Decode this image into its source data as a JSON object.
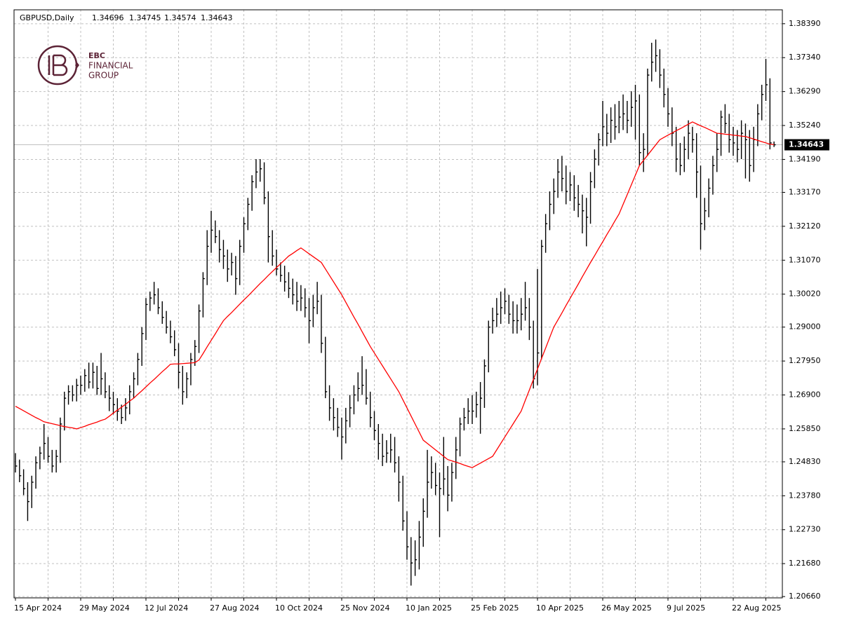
{
  "chart_data": {
    "type": "ohlc",
    "title": "GBPUSD,Daily",
    "quote": [
      "1.34696",
      "1.34745",
      "1.34574",
      "1.34643"
    ],
    "logo": {
      "mark": "EBC",
      "line1": "FINANCIAL",
      "line2": "GROUP"
    },
    "bar_color": "#000000",
    "grid": true,
    "categories": [
      "15 Apr 2024",
      null,
      null,
      null,
      null,
      null,
      null,
      null,
      null,
      null,
      null,
      null,
      null,
      null,
      null,
      null,
      "29 May 2024",
      null,
      null,
      null,
      null,
      null,
      null,
      null,
      null,
      null,
      null,
      null,
      null,
      null,
      null,
      null,
      "12 Jul 2024",
      null,
      null,
      null,
      null,
      null,
      null,
      null,
      null,
      null,
      null,
      null,
      null,
      null,
      null,
      null,
      "27 Aug 2024",
      null,
      null,
      null,
      null,
      null,
      null,
      null,
      null,
      null,
      null,
      null,
      null,
      null,
      null,
      null,
      "10 Oct 2024",
      null,
      null,
      null,
      null,
      null,
      null,
      null,
      null,
      null,
      null,
      null,
      null,
      null,
      null,
      null,
      "25 Nov 2024",
      null,
      null,
      null,
      null,
      null,
      null,
      null,
      null,
      null,
      null,
      null,
      null,
      null,
      null,
      null,
      "10 Jan 2025",
      null,
      null,
      null,
      null,
      null,
      null,
      null,
      null,
      null,
      null,
      null,
      null,
      null,
      null,
      null,
      "25 Feb 2025",
      null,
      null,
      null,
      null,
      null,
      null,
      null,
      null,
      null,
      null,
      null,
      null,
      null,
      null,
      null,
      "10 Apr 2025",
      null,
      null,
      null,
      null,
      null,
      null,
      null,
      null,
      null,
      null,
      null,
      null,
      null,
      null,
      null,
      "26 May 2025",
      null,
      null,
      null,
      null,
      null,
      null,
      null,
      null,
      null,
      null,
      null,
      null,
      null,
      null,
      null,
      "9 Jul 2025",
      null,
      null,
      null,
      null,
      null,
      null,
      null,
      null,
      null,
      null,
      null,
      null,
      null,
      null,
      null,
      "22 Aug 2025",
      null,
      null,
      null,
      null,
      null,
      null,
      null,
      null,
      null,
      null
    ],
    "high": [
      1.251,
      1.249,
      1.246,
      1.242,
      1.244,
      1.25,
      1.253,
      1.26,
      1.256,
      1.252,
      1.252,
      1.262,
      1.27,
      1.272,
      1.272,
      1.274,
      1.275,
      1.277,
      1.279,
      1.279,
      1.278,
      1.282,
      1.276,
      1.272,
      1.27,
      1.268,
      1.266,
      1.268,
      1.272,
      1.276,
      1.282,
      1.29,
      1.299,
      1.301,
      1.304,
      1.302,
      1.298,
      1.295,
      1.292,
      1.289,
      1.285,
      1.278,
      1.276,
      1.282,
      1.286,
      1.297,
      1.307,
      1.32,
      1.326,
      1.323,
      1.32,
      1.317,
      1.314,
      1.313,
      1.312,
      1.317,
      1.324,
      1.33,
      1.337,
      1.342,
      1.342,
      1.341,
      1.332,
      1.32,
      1.314,
      1.31,
      1.309,
      1.307,
      1.305,
      1.304,
      1.303,
      1.302,
      1.299,
      1.3,
      1.304,
      1.3,
      1.287,
      1.272,
      1.268,
      1.265,
      1.262,
      1.265,
      1.269,
      1.272,
      1.276,
      1.281,
      1.277,
      1.27,
      1.264,
      1.26,
      1.257,
      1.255,
      1.257,
      1.256,
      1.25,
      1.244,
      1.233,
      1.225,
      1.224,
      1.23,
      1.237,
      1.252,
      1.25,
      1.248,
      1.245,
      1.256,
      1.247,
      1.248,
      1.256,
      1.262,
      1.265,
      1.268,
      1.269,
      1.27,
      1.273,
      1.28,
      1.292,
      1.296,
      1.299,
      1.301,
      1.302,
      1.3,
      1.298,
      1.297,
      1.299,
      1.304,
      1.299,
      1.292,
      1.308,
      1.317,
      1.325,
      1.332,
      1.336,
      1.342,
      1.343,
      1.34,
      1.338,
      1.337,
      1.334,
      1.331,
      1.33,
      1.338,
      1.345,
      1.35,
      1.36,
      1.356,
      1.358,
      1.359,
      1.36,
      1.362,
      1.36,
      1.363,
      1.365,
      1.362,
      1.35,
      1.37,
      1.378,
      1.379,
      1.376,
      1.37,
      1.364,
      1.358,
      1.352,
      1.347,
      1.349,
      1.354,
      1.352,
      1.35,
      1.34,
      1.33,
      1.336,
      1.343,
      1.35,
      1.357,
      1.359,
      1.356,
      1.352,
      1.351,
      1.354,
      1.353,
      1.351,
      1.352,
      1.359,
      1.365,
      1.373,
      1.367,
      1.34745
    ],
    "low": [
      1.245,
      1.242,
      1.238,
      1.23,
      1.234,
      1.24,
      1.246,
      1.249,
      1.248,
      1.245,
      1.245,
      1.248,
      1.258,
      1.266,
      1.267,
      1.267,
      1.269,
      1.27,
      1.271,
      1.271,
      1.269,
      1.269,
      1.268,
      1.264,
      1.263,
      1.261,
      1.26,
      1.261,
      1.263,
      1.268,
      1.272,
      1.278,
      1.286,
      1.295,
      1.297,
      1.294,
      1.291,
      1.288,
      1.285,
      1.281,
      1.271,
      1.266,
      1.268,
      1.272,
      1.278,
      1.282,
      1.293,
      1.303,
      1.313,
      1.316,
      1.31,
      1.308,
      1.304,
      1.306,
      1.3,
      1.303,
      1.313,
      1.32,
      1.326,
      1.333,
      1.335,
      1.328,
      1.31,
      1.309,
      1.306,
      1.304,
      1.301,
      1.299,
      1.297,
      1.295,
      1.295,
      1.293,
      1.285,
      1.29,
      1.294,
      1.282,
      1.268,
      1.261,
      1.258,
      1.256,
      1.249,
      1.254,
      1.259,
      1.263,
      1.267,
      1.269,
      1.266,
      1.259,
      1.255,
      1.249,
      1.247,
      1.248,
      1.248,
      1.245,
      1.236,
      1.227,
      1.218,
      1.21,
      1.213,
      1.215,
      1.222,
      1.231,
      1.24,
      1.238,
      1.225,
      1.238,
      1.233,
      1.236,
      1.243,
      1.25,
      1.258,
      1.26,
      1.26,
      1.262,
      1.257,
      1.265,
      1.276,
      1.288,
      1.29,
      1.291,
      1.294,
      1.291,
      1.288,
      1.288,
      1.289,
      1.292,
      1.286,
      1.271,
      1.272,
      1.28,
      1.313,
      1.32,
      1.325,
      1.33,
      1.332,
      1.328,
      1.329,
      1.326,
      1.324,
      1.319,
      1.315,
      1.322,
      1.333,
      1.34,
      1.346,
      1.346,
      1.347,
      1.348,
      1.35,
      1.351,
      1.35,
      1.352,
      1.348,
      1.34,
      1.338,
      1.343,
      1.366,
      1.369,
      1.364,
      1.358,
      1.352,
      1.346,
      1.338,
      1.337,
      1.338,
      1.342,
      1.344,
      1.33,
      1.314,
      1.32,
      1.324,
      1.331,
      1.338,
      1.343,
      1.35,
      1.344,
      1.343,
      1.341,
      1.342,
      1.336,
      1.335,
      1.338,
      1.346,
      1.354,
      1.36,
      1.345,
      1.34574
    ],
    "close": [
      1.247,
      1.244,
      1.24,
      1.236,
      1.242,
      1.248,
      1.251,
      1.254,
      1.25,
      1.247,
      1.25,
      1.26,
      1.268,
      1.27,
      1.269,
      1.272,
      1.272,
      1.275,
      1.273,
      1.276,
      1.271,
      1.274,
      1.27,
      1.268,
      1.266,
      1.264,
      1.262,
      1.265,
      1.27,
      1.274,
      1.28,
      1.288,
      1.297,
      1.299,
      1.3,
      1.296,
      1.293,
      1.29,
      1.287,
      1.283,
      1.276,
      1.27,
      1.274,
      1.28,
      1.284,
      1.295,
      1.305,
      1.315,
      1.32,
      1.318,
      1.314,
      1.312,
      1.308,
      1.31,
      1.305,
      1.315,
      1.322,
      1.328,
      1.335,
      1.338,
      1.339,
      1.33,
      1.318,
      1.312,
      1.308,
      1.306,
      1.304,
      1.302,
      1.3,
      1.298,
      1.299,
      1.296,
      1.292,
      1.296,
      1.298,
      1.285,
      1.27,
      1.265,
      1.262,
      1.259,
      1.256,
      1.261,
      1.265,
      1.269,
      1.271,
      1.272,
      1.268,
      1.262,
      1.258,
      1.254,
      1.25,
      1.251,
      1.252,
      1.248,
      1.242,
      1.23,
      1.222,
      1.217,
      1.218,
      1.225,
      1.233,
      1.242,
      1.245,
      1.241,
      1.24,
      1.243,
      1.238,
      1.245,
      1.252,
      1.26,
      1.262,
      1.264,
      1.264,
      1.266,
      1.268,
      1.278,
      1.29,
      1.292,
      1.294,
      1.296,
      1.298,
      1.294,
      1.292,
      1.292,
      1.294,
      1.296,
      1.29,
      1.274,
      1.282,
      1.315,
      1.322,
      1.328,
      1.332,
      1.338,
      1.336,
      1.332,
      1.334,
      1.33,
      1.328,
      1.326,
      1.324,
      1.335,
      1.342,
      1.348,
      1.352,
      1.35,
      1.354,
      1.352,
      1.355,
      1.356,
      1.354,
      1.358,
      1.36,
      1.344,
      1.345,
      1.368,
      1.372,
      1.374,
      1.368,
      1.362,
      1.356,
      1.35,
      1.342,
      1.34,
      1.345,
      1.35,
      1.348,
      1.338,
      1.322,
      1.326,
      1.333,
      1.34,
      1.345,
      1.355,
      1.353,
      1.348,
      1.347,
      1.345,
      1.35,
      1.348,
      1.34,
      1.348,
      1.356,
      1.362,
      1.365,
      1.347,
      1.34643
    ],
    "moving_average": {
      "color": "#ff0000",
      "values": [
        1.2655,
        1.2648,
        1.2641,
        1.2634,
        1.2627,
        1.262,
        1.2614,
        1.2607,
        1.2604,
        1.2601,
        1.2598,
        1.2595,
        1.2592,
        1.259,
        1.2588,
        1.2585,
        1.2589,
        1.2593,
        1.2598,
        1.2602,
        1.2606,
        1.2611,
        1.2615,
        1.2624,
        1.2634,
        1.2643,
        1.2652,
        1.2661,
        1.2671,
        1.268,
        1.2692,
        1.2703,
        1.2715,
        1.2727,
        1.2738,
        1.275,
        1.2762,
        1.2773,
        1.2785,
        1.2786,
        1.2786,
        1.2787,
        1.2788,
        1.2789,
        1.279,
        1.2798,
        1.2818,
        1.2839,
        1.2859,
        1.2879,
        1.29,
        1.292,
        1.2933,
        1.2945,
        1.2958,
        1.2971,
        1.2984,
        1.2996,
        1.3009,
        1.3022,
        1.3035,
        1.3047,
        1.306,
        1.3072,
        1.3084,
        1.3096,
        1.3108,
        1.312,
        1.3128,
        1.3137,
        1.3145,
        1.3136,
        1.3127,
        1.3118,
        1.3109,
        1.31,
        1.308,
        1.306,
        1.304,
        1.302,
        1.3,
        1.2977,
        1.2954,
        1.2931,
        1.2909,
        1.2886,
        1.2863,
        1.284,
        1.282,
        1.28,
        1.278,
        1.276,
        1.274,
        1.272,
        1.27,
        1.2675,
        1.265,
        1.2625,
        1.26,
        1.2575,
        1.255,
        1.254,
        1.253,
        1.252,
        1.251,
        1.25,
        1.249,
        1.2486,
        1.2482,
        1.2478,
        1.2473,
        1.2469,
        1.2465,
        1.2472,
        1.2479,
        1.2486,
        1.2493,
        1.25,
        1.252,
        1.254,
        1.256,
        1.258,
        1.26,
        1.262,
        1.264,
        1.2673,
        1.2705,
        1.2738,
        1.277,
        1.2803,
        1.2835,
        1.2868,
        1.29,
        1.2922,
        1.2944,
        1.2967,
        1.2989,
        1.3011,
        1.3033,
        1.3056,
        1.3078,
        1.31,
        1.3121,
        1.3143,
        1.3164,
        1.3186,
        1.3207,
        1.3229,
        1.325,
        1.328,
        1.331,
        1.334,
        1.337,
        1.34,
        1.3416,
        1.3432,
        1.3448,
        1.3464,
        1.348,
        1.3487,
        1.3494,
        1.3501,
        1.3508,
        1.3514,
        1.3521,
        1.3528,
        1.3535,
        1.3529,
        1.3523,
        1.3518,
        1.3512,
        1.3506,
        1.35,
        1.3499,
        1.3497,
        1.3496,
        1.3494,
        1.3493,
        1.3491,
        1.349,
        1.3486,
        1.3482,
        1.3478,
        1.3474,
        1.347,
        1.3466,
        1.3465
      ]
    },
    "current_price": {
      "value": 1.34643,
      "label": "1.34643"
    },
    "ylim": [
      1.2062,
      1.3882
    ],
    "yticks": [
      {
        "value": 1.3839,
        "label": "1.38390"
      },
      {
        "value": 1.3734,
        "label": "1.37340"
      },
      {
        "value": 1.3629,
        "label": "1.36290"
      },
      {
        "value": 1.3524,
        "label": "1.35240"
      },
      {
        "value": 1.3419,
        "label": "1.34190"
      },
      {
        "value": 1.3317,
        "label": "1.33170"
      },
      {
        "value": 1.3212,
        "label": "1.32120"
      },
      {
        "value": 1.3107,
        "label": "1.31070"
      },
      {
        "value": 1.3002,
        "label": "1.30020"
      },
      {
        "value": 1.29,
        "label": "1.29000"
      },
      {
        "value": 1.2795,
        "label": "1.27950"
      },
      {
        "value": 1.269,
        "label": "1.26900"
      },
      {
        "value": 1.2585,
        "label": "1.25850"
      },
      {
        "value": 1.2483,
        "label": "1.24830"
      },
      {
        "value": 1.2378,
        "label": "1.23780"
      },
      {
        "value": 1.2273,
        "label": "1.22730"
      },
      {
        "value": 1.2168,
        "label": "1.21680"
      },
      {
        "value": 1.2066,
        "label": "1.20660"
      }
    ]
  }
}
